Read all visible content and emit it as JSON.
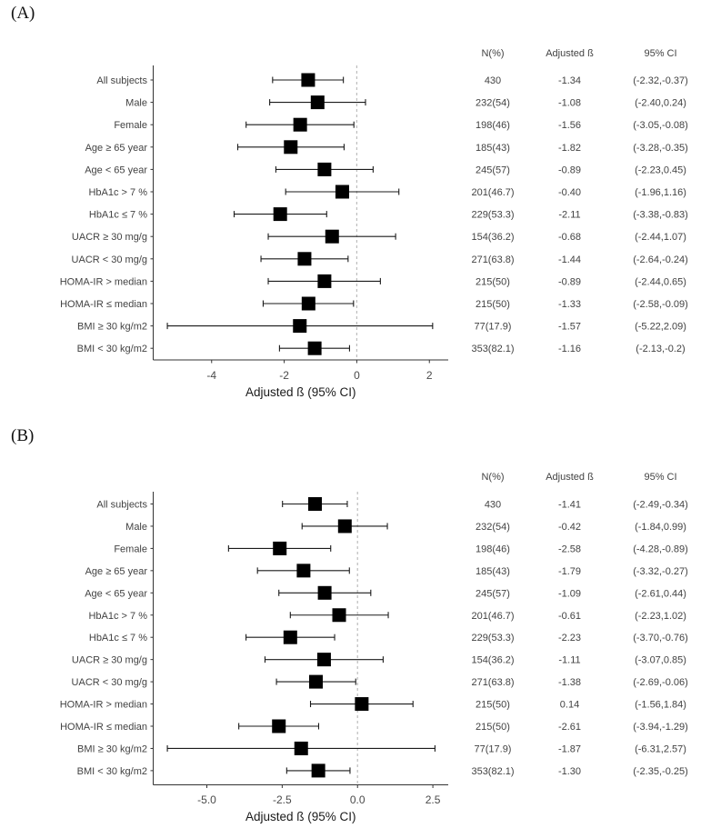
{
  "style": {
    "marker_color": "#000000",
    "whisker_color": "#1a1a1a",
    "axis_color": "#333333",
    "text_color": "#424242",
    "ref_line_color": "#bdbdbd",
    "background": "#ffffff"
  },
  "chart_data": [
    {
      "type": "forest",
      "panel": "(A)",
      "xlabel": "Adjusted ß (95% CI)",
      "columns": [
        "N(%)",
        "Adjusted ß",
        "95% CI"
      ],
      "refline": 0,
      "xlim": [
        -5.61,
        2.52
      ],
      "grid": false,
      "xticks": [
        {
          "v": -4,
          "label": "-4"
        },
        {
          "v": -2,
          "label": "-2"
        },
        {
          "v": 0,
          "label": "0"
        },
        {
          "v": 2,
          "label": "2"
        }
      ],
      "rows": [
        {
          "label": "All subjects",
          "n": "430",
          "beta": "-1.34",
          "lo": -2.32,
          "hi": -0.37,
          "ci": "(-2.32,-0.37)"
        },
        {
          "label": "Male",
          "n": "232(54)",
          "beta": "-1.08",
          "lo": -2.4,
          "hi": 0.24,
          "ci": "(-2.40,0.24)"
        },
        {
          "label": "Female",
          "n": "198(46)",
          "beta": "-1.56",
          "lo": -3.05,
          "hi": -0.08,
          "ci": "(-3.05,-0.08)"
        },
        {
          "label": "Age ≥ 65 year",
          "n": "185(43)",
          "beta": "-1.82",
          "lo": -3.28,
          "hi": -0.35,
          "ci": "(-3.28,-0.35)"
        },
        {
          "label": "Age < 65 year",
          "n": "245(57)",
          "beta": "-0.89",
          "lo": -2.23,
          "hi": 0.45,
          "ci": "(-2.23,0.45)"
        },
        {
          "label": "HbA1c > 7 %",
          "n": "201(46.7)",
          "beta": "-0.40",
          "lo": -1.96,
          "hi": 1.16,
          "ci": "(-1.96,1.16)"
        },
        {
          "label": "HbA1c ≤ 7 %",
          "n": "229(53.3)",
          "beta": "-2.11",
          "lo": -3.38,
          "hi": -0.83,
          "ci": "(-3.38,-0.83)"
        },
        {
          "label": "UACR ≥ 30 mg/g",
          "n": "154(36.2)",
          "beta": "-0.68",
          "lo": -2.44,
          "hi": 1.07,
          "ci": "(-2.44,1.07)"
        },
        {
          "label": "UACR < 30 mg/g",
          "n": "271(63.8)",
          "beta": "-1.44",
          "lo": -2.64,
          "hi": -0.24,
          "ci": "(-2.64,-0.24)"
        },
        {
          "label": "HOMA-IR > median",
          "n": "215(50)",
          "beta": "-0.89",
          "lo": -2.44,
          "hi": 0.65,
          "ci": "(-2.44,0.65)"
        },
        {
          "label": "HOMA-IR ≤ median",
          "n": "215(50)",
          "beta": "-1.33",
          "lo": -2.58,
          "hi": -0.09,
          "ci": "(-2.58,-0.09)"
        },
        {
          "label": "BMI ≥ 30 kg/m2",
          "n": "77(17.9)",
          "beta": "-1.57",
          "lo": -5.22,
          "hi": 2.09,
          "ci": "(-5.22,2.09)"
        },
        {
          "label": "BMI < 30 kg/m2",
          "n": "353(82.1)",
          "beta": "-1.16",
          "lo": -2.13,
          "hi": -0.2,
          "ci": "(-2.13,-0.2)"
        }
      ]
    },
    {
      "type": "forest",
      "panel": "(B)",
      "xlabel": "Adjusted ß (95% CI)",
      "columns": [
        "N(%)",
        "Adjusted ß",
        "95% CI"
      ],
      "refline": 0,
      "xlim": [
        -6.78,
        3.01
      ],
      "grid": false,
      "xticks": [
        {
          "v": -5,
          "label": "-5.0"
        },
        {
          "v": -2.5,
          "label": "-2.5"
        },
        {
          "v": 0,
          "label": "0.0"
        },
        {
          "v": 2.5,
          "label": "2.5"
        }
      ],
      "rows": [
        {
          "label": "All subjects",
          "n": "430",
          "beta": "-1.41",
          "lo": -2.49,
          "hi": -0.34,
          "ci": "(-2.49,-0.34)"
        },
        {
          "label": "Male",
          "n": "232(54)",
          "beta": "-0.42",
          "lo": -1.84,
          "hi": 0.99,
          "ci": "(-1.84,0.99)"
        },
        {
          "label": "Female",
          "n": "198(46)",
          "beta": "-2.58",
          "lo": -4.28,
          "hi": -0.89,
          "ci": "(-4.28,-0.89)"
        },
        {
          "label": "Age ≥ 65 year",
          "n": "185(43)",
          "beta": "-1.79",
          "lo": -3.32,
          "hi": -0.27,
          "ci": "(-3.32,-0.27)"
        },
        {
          "label": "Age < 65 year",
          "n": "245(57)",
          "beta": "-1.09",
          "lo": -2.61,
          "hi": 0.44,
          "ci": "(-2.61,0.44)"
        },
        {
          "label": "HbA1c > 7 %",
          "n": "201(46.7)",
          "beta": "-0.61",
          "lo": -2.23,
          "hi": 1.02,
          "ci": "(-2.23,1.02)"
        },
        {
          "label": "HbA1c ≤ 7 %",
          "n": "229(53.3)",
          "beta": "-2.23",
          "lo": -3.7,
          "hi": -0.76,
          "ci": "(-3.70,-0.76)"
        },
        {
          "label": "UACR ≥ 30 mg/g",
          "n": "154(36.2)",
          "beta": "-1.11",
          "lo": -3.07,
          "hi": 0.85,
          "ci": "(-3.07,0.85)"
        },
        {
          "label": "UACR < 30 mg/g",
          "n": "271(63.8)",
          "beta": "-1.38",
          "lo": -2.69,
          "hi": -0.06,
          "ci": "(-2.69,-0.06)"
        },
        {
          "label": "HOMA-IR > median",
          "n": "215(50)",
          "beta": "0.14",
          "lo": -1.56,
          "hi": 1.84,
          "ci": "(-1.56,1.84)"
        },
        {
          "label": "HOMA-IR ≤ median",
          "n": "215(50)",
          "beta": "-2.61",
          "lo": -3.94,
          "hi": -1.29,
          "ci": "(-3.94,-1.29)"
        },
        {
          "label": "BMI ≥ 30 kg/m2",
          "n": "77(17.9)",
          "beta": "-1.87",
          "lo": -6.31,
          "hi": 2.57,
          "ci": "(-6.31,2.57)"
        },
        {
          "label": "BMI < 30 kg/m2",
          "n": "353(82.1)",
          "beta": "-1.30",
          "lo": -2.35,
          "hi": -0.25,
          "ci": "(-2.35,-0.25)"
        }
      ]
    }
  ]
}
